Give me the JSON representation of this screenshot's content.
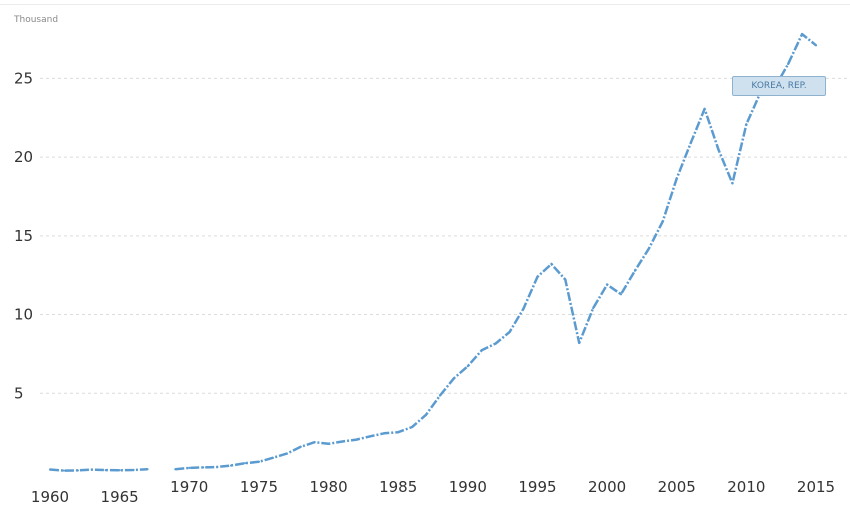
{
  "chart_data": {
    "type": "line",
    "unit_label": "Thousand",
    "x": [
      1960,
      1961,
      1962,
      1963,
      1964,
      1965,
      1966,
      1967,
      1968,
      1969,
      1970,
      1971,
      1972,
      1973,
      1974,
      1975,
      1976,
      1977,
      1978,
      1979,
      1980,
      1981,
      1982,
      1983,
      1984,
      1985,
      1986,
      1987,
      1988,
      1989,
      1990,
      1991,
      1992,
      1993,
      1994,
      1995,
      1996,
      1997,
      1998,
      1999,
      2000,
      2001,
      2002,
      2003,
      2004,
      2005,
      2006,
      2007,
      2008,
      2009,
      2010,
      2011,
      2012,
      2013,
      2014,
      2015
    ],
    "series": [
      {
        "name": "KOREA, REP.",
        "values": [
          0.16,
          0.09,
          0.1,
          0.15,
          0.12,
          0.11,
          0.13,
          0.18,
          null,
          0.18,
          0.26,
          0.29,
          0.32,
          0.41,
          0.56,
          0.65,
          0.9,
          1.17,
          1.6,
          1.89,
          1.79,
          1.94,
          2.06,
          2.27,
          2.46,
          2.53,
          2.86,
          3.63,
          4.86,
          5.95,
          6.72,
          7.73,
          8.16,
          8.89,
          10.38,
          12.4,
          13.21,
          12.22,
          8.2,
          10.41,
          11.9,
          11.29,
          12.78,
          14.19,
          15.92,
          18.64,
          20.89,
          23.06,
          20.47,
          18.34,
          22.09,
          24.08,
          24.36,
          25.91,
          27.81,
          27.1
        ]
      }
    ],
    "x_ticks_row1": [
      "1960",
      "1965"
    ],
    "x_ticks_row2": [
      "1970",
      "1975",
      "1980",
      "1985",
      "1990",
      "1995",
      "2000",
      "2005",
      "2010",
      "2015"
    ],
    "y_ticks": [
      "5",
      "10",
      "15",
      "20",
      "25"
    ],
    "ylim": [
      0,
      28
    ],
    "xlim": [
      1960,
      2015
    ],
    "grid": true,
    "legend_placement": "top-right"
  }
}
